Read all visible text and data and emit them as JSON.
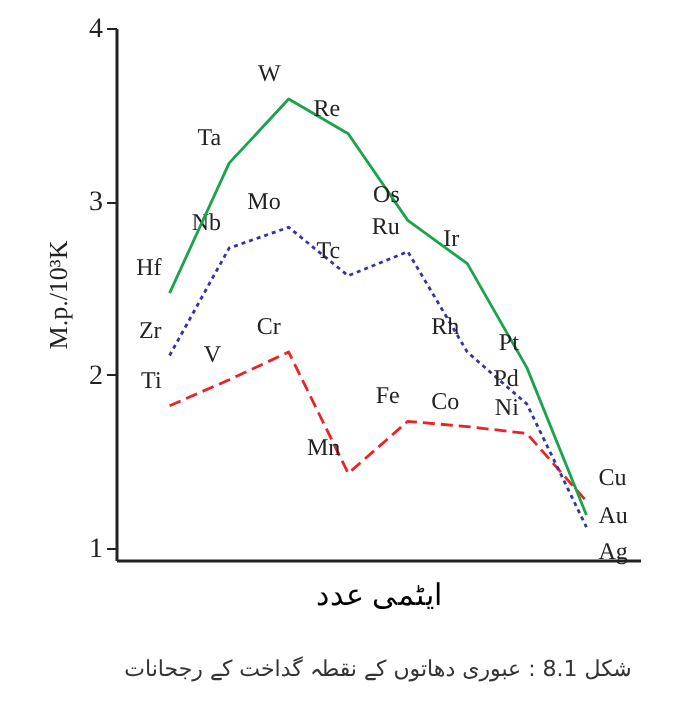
{
  "chart_data": {
    "type": "line",
    "title": "شکل 8.1 : عبوری دھاتوں کے نقطہ گداخت کے رجحانات",
    "xlabel": "ایٹمی عدد",
    "ylabel": "M.p./10³K",
    "categories": [
      null,
      null,
      null,
      null,
      null,
      null,
      null,
      null
    ],
    "ylim": [
      0.93,
      4
    ],
    "yticks": [
      1,
      2,
      3,
      4
    ],
    "grid": false,
    "series": [
      {
        "color": "#ee2222",
        "line_style": "dashed",
        "values": [
          1.82,
          1.97,
          2.13,
          1.43,
          1.73,
          1.7,
          1.66,
          1.27
        ],
        "value_labels": [
          "Ti",
          "V",
          "Cr",
          "Mn",
          "Fe",
          "Co",
          "Ni",
          "Cu"
        ]
      },
      {
        "color": "#3333aa",
        "line_style": "dotted",
        "values": [
          2.11,
          2.73,
          2.85,
          2.57,
          2.71,
          2.13,
          1.83,
          1.12
        ],
        "value_labels": [
          "Zr",
          "Nb",
          "Mo",
          "Tc",
          "Ru",
          "Rh",
          "Pd",
          "Ag"
        ]
      },
      {
        "color": "#1aa34a",
        "line_style": "solid",
        "values": [
          2.47,
          3.22,
          3.59,
          3.39,
          2.89,
          2.64,
          2.04,
          1.19
        ],
        "value_labels": [
          "Hf",
          "Ta",
          "W",
          "Re",
          "Os",
          "Ir",
          "Pt",
          "Au"
        ]
      }
    ]
  }
}
